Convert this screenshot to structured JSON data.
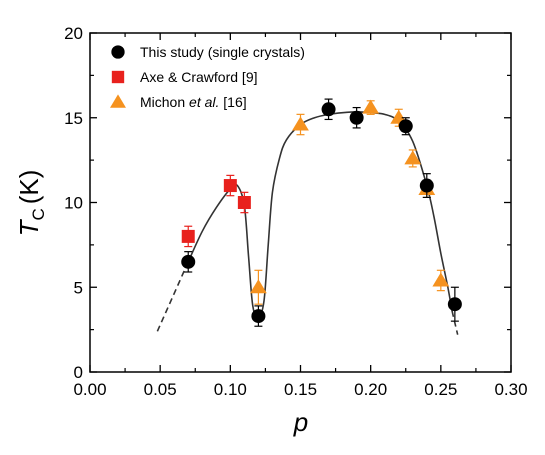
{
  "chart_data": {
    "type": "scatter",
    "xlabel": "p",
    "ylabel_main": "T",
    "ylabel_sub": "C",
    "ylabel_unit": "(K)",
    "xlim": [
      0.0,
      0.3
    ],
    "ylim": [
      0,
      20
    ],
    "x_ticks": [
      "0.00",
      "0.05",
      "0.10",
      "0.15",
      "0.20",
      "0.25",
      "0.30"
    ],
    "y_ticks": [
      "0",
      "5",
      "10",
      "15",
      "20"
    ],
    "grid": false,
    "legend_position": "top-left",
    "legend": [
      {
        "parts": [
          {
            "text": "This study (single crystals)",
            "italic": false
          }
        ]
      },
      {
        "parts": [
          {
            "text": "Axe & Crawford [9]",
            "italic": false
          }
        ]
      },
      {
        "parts": [
          {
            "text": "Michon ",
            "italic": false
          },
          {
            "text": "et al.",
            "italic": true
          },
          {
            "text": " [16]",
            "italic": false
          }
        ]
      }
    ],
    "series": [
      {
        "marker": "circle",
        "color": "#000000",
        "x": [
          0.07,
          0.12,
          0.17,
          0.19,
          0.225,
          0.24,
          0.26
        ],
        "y": [
          6.5,
          3.3,
          15.5,
          15.0,
          14.5,
          11.0,
          4.0
        ],
        "yerr": [
          0.6,
          0.6,
          0.6,
          0.6,
          0.5,
          0.7,
          1.0
        ]
      },
      {
        "marker": "square",
        "color": "#e8211d",
        "x": [
          0.07,
          0.1,
          0.11
        ],
        "y": [
          8.0,
          11.0,
          10.0
        ],
        "yerr": [
          0.6,
          0.6,
          0.6
        ]
      },
      {
        "marker": "triangle",
        "color": "#f5921f",
        "x": [
          0.12,
          0.15,
          0.2,
          0.22,
          0.23,
          0.24,
          0.25
        ],
        "y": [
          5.0,
          14.6,
          15.6,
          15.0,
          12.6,
          10.8,
          5.4
        ],
        "yerr": [
          1.0,
          0.6,
          0.4,
          0.5,
          0.5,
          0.5,
          0.6
        ]
      }
    ],
    "fit_curve": {
      "x": [
        0.07,
        0.08,
        0.09,
        0.1,
        0.105,
        0.11,
        0.113,
        0.116,
        0.12,
        0.124,
        0.127,
        0.13,
        0.135,
        0.14,
        0.15,
        0.16,
        0.17,
        0.18,
        0.19,
        0.2,
        0.21,
        0.22,
        0.23,
        0.24,
        0.245,
        0.25,
        0.255,
        0.258
      ],
      "y": [
        6.5,
        8.3,
        9.7,
        10.8,
        11.0,
        9.8,
        6.8,
        3.9,
        3.2,
        4.2,
        7.5,
        10.6,
        12.6,
        13.7,
        14.6,
        15.0,
        15.2,
        15.3,
        15.35,
        15.3,
        15.2,
        14.8,
        13.6,
        11.0,
        9.2,
        7.0,
        5.0,
        3.6
      ],
      "color": "#333333"
    },
    "dashed_extensions": [
      {
        "x": [
          0.048,
          0.07
        ],
        "y": [
          2.4,
          6.5
        ]
      },
      {
        "x": [
          0.258,
          0.262
        ],
        "y": [
          3.6,
          2.2
        ]
      }
    ]
  }
}
